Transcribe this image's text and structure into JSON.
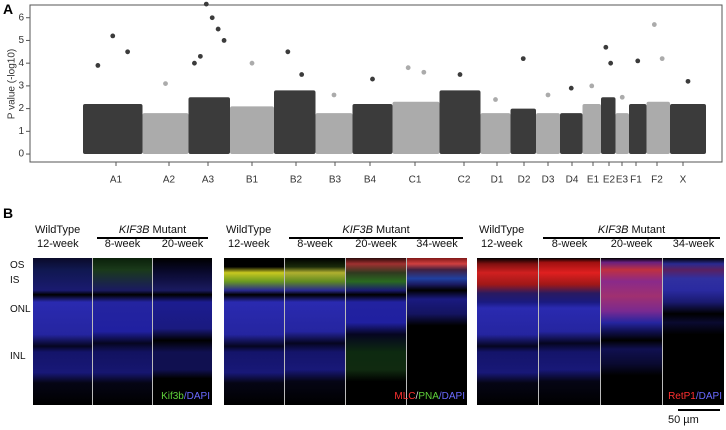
{
  "panel_labels": [
    "A",
    "B"
  ],
  "chart_data": {
    "type": "manhattan",
    "y_label": "P value (-log10)",
    "categories": [
      "A1",
      "A2",
      "A3",
      "B1",
      "B2",
      "B3",
      "B4",
      "C1",
      "C2",
      "D1",
      "D2",
      "D3",
      "D4",
      "E1",
      "E2",
      "E3",
      "F1",
      "F2",
      "X"
    ],
    "bulk": [
      2.2,
      1.8,
      2.5,
      2.1,
      2.8,
      1.8,
      2.2,
      2.3,
      2.8,
      1.8,
      2.0,
      1.8,
      1.8,
      2.2,
      2.5,
      1.8,
      2.2,
      2.3,
      2.2
    ],
    "peaks": [
      [
        3.9,
        5.2,
        4.5
      ],
      [
        3.1
      ],
      [
        4.0,
        4.3,
        6.6,
        6.0,
        5.5,
        5.0
      ],
      [
        4.0
      ],
      [
        4.5,
        3.5
      ],
      [
        2.6
      ],
      [
        3.3
      ],
      [
        3.8,
        3.6
      ],
      [
        3.5
      ],
      [
        2.4
      ],
      [
        4.2
      ],
      [
        2.6
      ],
      [
        2.9
      ],
      [
        3.0
      ],
      [
        4.7,
        4.0
      ],
      [
        2.5
      ],
      [
        4.1
      ],
      [
        5.7,
        4.2
      ],
      [
        3.2
      ]
    ],
    "colors": [
      "#3b3b3b",
      "#ababab"
    ],
    "ylim": [
      -0.35,
      6.56
    ],
    "yticks": [
      0,
      1,
      2,
      3,
      4,
      5,
      6
    ]
  },
  "panel_b": {
    "layers": [
      "OS",
      "IS",
      "ONL",
      "INL"
    ],
    "groups": [
      {
        "wildtype": "WildType",
        "wt_age": "12-week",
        "mutant_gene": "KIF3B",
        "mutant_word": "Mutant",
        "mutant_ages": [
          "8-week",
          "20-week"
        ],
        "stain": [
          {
            "text": "Kif3b",
            "color": "#5fd13a"
          },
          {
            "text": "/DAPI",
            "color": "#6a6aff"
          }
        ]
      },
      {
        "wildtype": "WildType",
        "wt_age": "12-week",
        "mutant_gene": "KIF3B",
        "mutant_word": "Mutant",
        "mutant_ages": [
          "8-week",
          "20-week",
          "34-week"
        ],
        "stain": [
          {
            "text": "MLC",
            "color": "#ff3030"
          },
          {
            "text": "/",
            "color": "#dddddd"
          },
          {
            "text": "PNA",
            "color": "#5fd13a"
          },
          {
            "text": "/DAPI",
            "color": "#6a6aff"
          }
        ]
      },
      {
        "wildtype": "WildType",
        "wt_age": "12-week",
        "mutant_gene": "KIF3B",
        "mutant_word": "Mutant",
        "mutant_ages": [
          "8-week",
          "20-week",
          "34-week"
        ],
        "stain": [
          {
            "text": "RetP1",
            "color": "#ff3030"
          },
          {
            "text": "/DAPI",
            "color": "#6a6aff"
          }
        ]
      }
    ],
    "scale_bar": "50 µm"
  }
}
